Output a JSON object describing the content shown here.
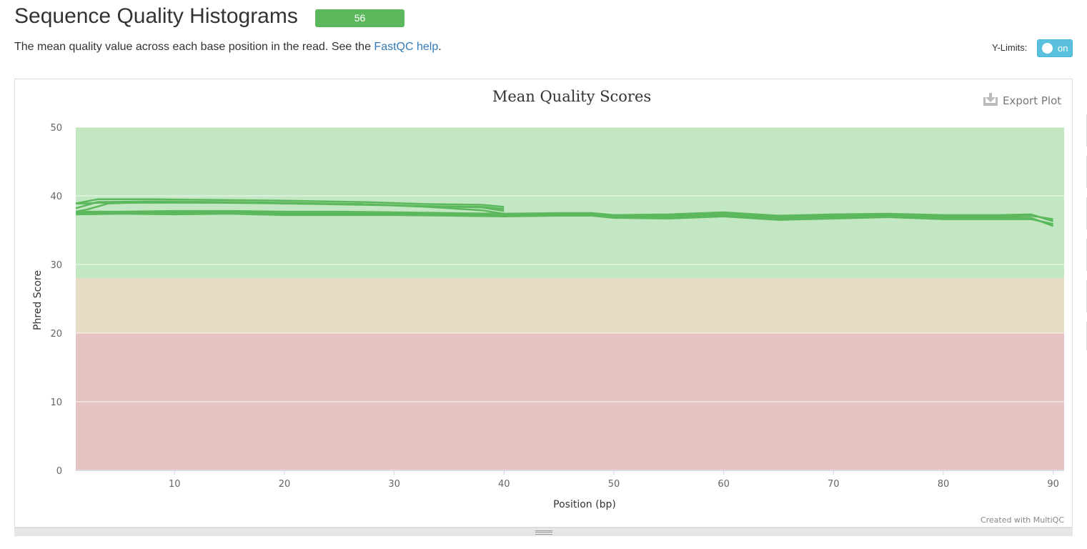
{
  "header": {
    "title": "Sequence Quality Histograms",
    "badge_count": "56",
    "description_text": "The mean quality value across each base position in the read. See the ",
    "help_link": "FastQC help",
    "description_end": "."
  },
  "controls": {
    "ylimits_label": "Y-Limits:",
    "toggle_label": "on",
    "toggle_color": "#5bc0de",
    "export_label": "Export Plot",
    "export_icon": "download-icon"
  },
  "footer": {
    "credit": "Created with MultiQC"
  },
  "colors": {
    "series": "#5cb85c",
    "good_band": "#c3e6c3",
    "warn_band": "#e6dcc3",
    "fail_band": "#e6c3c3",
    "badge": "#5cb85c"
  },
  "chart_data": {
    "type": "line",
    "title": "Mean Quality Scores",
    "xlabel": "Position (bp)",
    "ylabel": "Phred Score",
    "xlim": [
      1,
      91
    ],
    "ylim": [
      0,
      50
    ],
    "xticks": [
      10,
      20,
      30,
      40,
      50,
      60,
      70,
      80,
      90
    ],
    "yticks": [
      0,
      10,
      20,
      30,
      40,
      50
    ],
    "grid": true,
    "bands": [
      {
        "from": 28,
        "to": 50,
        "color": "#c3e6c3"
      },
      {
        "from": 20,
        "to": 28,
        "color": "#e6dcc3"
      },
      {
        "from": 0,
        "to": 20,
        "color": "#e6c3c3"
      }
    ],
    "series": [
      {
        "x": [
          1,
          3,
          8,
          14,
          20,
          27,
          33,
          38,
          40
        ],
        "y": [
          38.9,
          39.5,
          39.5,
          39.4,
          39.3,
          39.1,
          38.8,
          38.7,
          38.4
        ]
      },
      {
        "x": [
          1,
          3,
          8,
          14,
          20,
          27,
          33,
          38,
          40
        ],
        "y": [
          38.2,
          39.1,
          39.2,
          39.1,
          38.9,
          38.7,
          38.5,
          38.3,
          37.8
        ]
      },
      {
        "x": [
          1,
          2,
          3,
          8,
          14,
          20,
          27,
          33,
          38,
          40
        ],
        "y": [
          38.9,
          38.9,
          39.0,
          39.0,
          39.0,
          38.9,
          38.8,
          38.5,
          38.4,
          38.1
        ]
      },
      {
        "x": [
          1,
          2,
          4,
          8,
          14,
          20,
          27,
          33,
          38,
          40
        ],
        "y": [
          37.7,
          38.0,
          38.9,
          39.1,
          39.1,
          39.0,
          38.8,
          38.4,
          37.9,
          37.4
        ]
      },
      {
        "x": [
          1,
          5,
          10,
          15,
          20,
          25,
          30,
          35,
          40,
          45,
          48,
          50,
          55,
          60,
          65,
          70,
          75,
          80,
          85,
          88,
          90
        ],
        "y": [
          37.5,
          37.6,
          37.5,
          37.5,
          37.4,
          37.4,
          37.4,
          37.3,
          37.2,
          37.3,
          37.2,
          36.9,
          36.9,
          37.2,
          36.7,
          36.9,
          37.0,
          36.8,
          36.8,
          36.8,
          35.6
        ]
      },
      {
        "x": [
          1,
          5,
          10,
          15,
          20,
          25,
          30,
          35,
          40,
          45,
          48,
          50,
          55,
          60,
          65,
          70,
          75,
          80,
          85,
          88,
          90
        ],
        "y": [
          37.7,
          37.7,
          37.8,
          37.8,
          37.7,
          37.7,
          37.6,
          37.5,
          37.4,
          37.5,
          37.5,
          37.2,
          37.3,
          37.6,
          37.1,
          37.3,
          37.4,
          37.2,
          37.2,
          37.3,
          36.3
        ]
      },
      {
        "x": [
          1,
          5,
          10,
          15,
          20,
          25,
          30,
          35,
          40,
          45,
          48,
          50,
          55,
          60,
          65,
          70,
          75,
          80,
          85,
          88,
          90
        ],
        "y": [
          37.3,
          37.4,
          37.3,
          37.4,
          37.2,
          37.2,
          37.2,
          37.1,
          37.0,
          37.1,
          37.1,
          36.8,
          36.7,
          37.0,
          36.5,
          36.7,
          36.9,
          36.6,
          36.6,
          36.6,
          35.9
        ]
      },
      {
        "x": [
          1,
          5,
          10,
          15,
          20,
          25,
          30,
          35,
          40,
          45,
          48,
          50,
          55,
          60,
          65,
          70,
          75,
          80,
          85,
          88,
          90
        ],
        "y": [
          37.6,
          37.5,
          37.6,
          37.6,
          37.5,
          37.5,
          37.4,
          37.4,
          37.3,
          37.4,
          37.3,
          37.0,
          37.1,
          37.4,
          36.9,
          37.1,
          37.2,
          37.0,
          37.0,
          37.1,
          36.6
        ]
      }
    ]
  }
}
